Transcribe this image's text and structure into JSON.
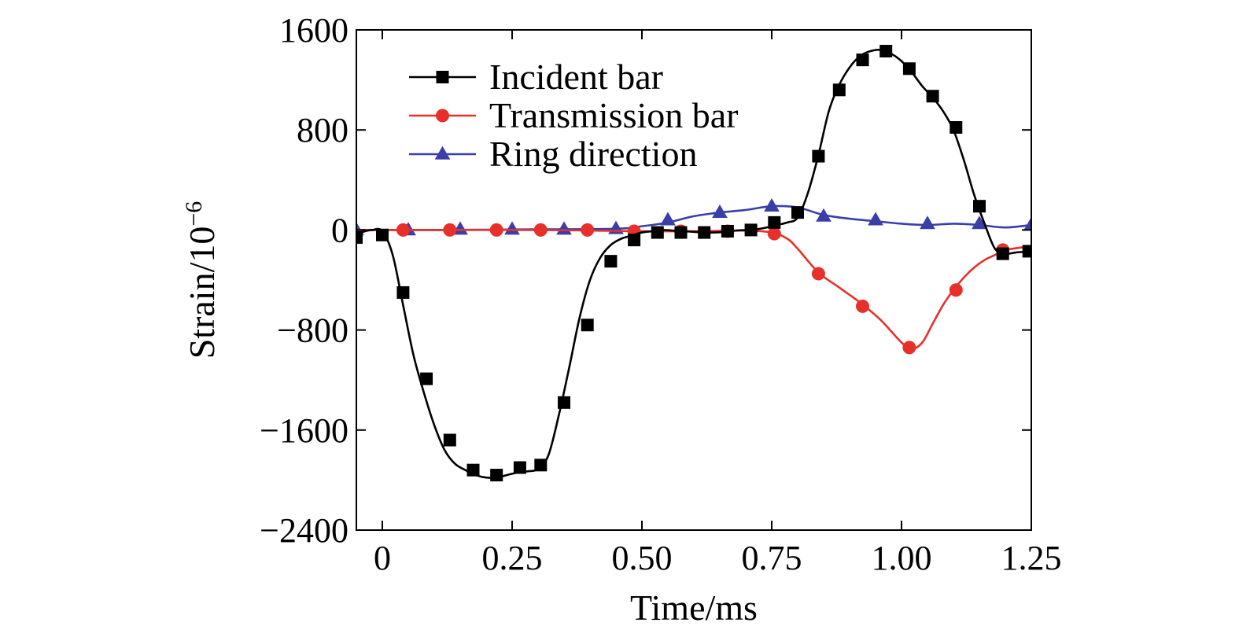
{
  "chart_data": {
    "type": "line",
    "xlabel": "Time/ms",
    "ylabel": "Strain/10",
    "ylabel_exp": "−6",
    "xlim": [
      -0.05,
      1.25
    ],
    "ylim": [
      -2400,
      1600
    ],
    "xticks": [
      0,
      0.25,
      0.5,
      0.75,
      1.0,
      1.25
    ],
    "xtick_labels": [
      "0",
      "0.25",
      "0.50",
      "0.75",
      "1.00",
      "1.25"
    ],
    "yticks": [
      1600,
      800,
      0,
      -800,
      -1600,
      -2400
    ],
    "ytick_labels": [
      "1600",
      "800",
      "0",
      "−800",
      "−1600",
      "−2400"
    ],
    "grid": false,
    "legend_position": "top-left",
    "series": [
      {
        "name": "Incident bar",
        "color": "#000000",
        "marker": "square",
        "x": [
          -0.05,
          -0.04,
          -0.02,
          0,
          0.02,
          0.04,
          0.06,
          0.08,
          0.1,
          0.12,
          0.14,
          0.16,
          0.18,
          0.2,
          0.22,
          0.24,
          0.26,
          0.28,
          0.3,
          0.32,
          0.34,
          0.36,
          0.38,
          0.4,
          0.42,
          0.44,
          0.46,
          0.48,
          0.5,
          0.52,
          0.54,
          0.56,
          0.58,
          0.6,
          0.62,
          0.64,
          0.66,
          0.68,
          0.7,
          0.72,
          0.74,
          0.76,
          0.78,
          0.8,
          0.82,
          0.84,
          0.86,
          0.88,
          0.9,
          0.92,
          0.94,
          0.96,
          0.98,
          1.0,
          1.02,
          1.04,
          1.06,
          1.08,
          1.1,
          1.12,
          1.14,
          1.16,
          1.18,
          1.2,
          1.22,
          1.25
        ],
        "y": [
          -60,
          -20,
          0,
          -10,
          -200,
          -600,
          -1000,
          -1300,
          -1560,
          -1760,
          -1870,
          -1920,
          -1960,
          -1980,
          -1980,
          -1960,
          -1940,
          -1930,
          -1910,
          -1800,
          -1480,
          -1100,
          -700,
          -400,
          -220,
          -120,
          -70,
          -45,
          -20,
          -10,
          0,
          -5,
          -10,
          -15,
          -20,
          -20,
          -15,
          -5,
          0,
          5,
          20,
          40,
          60,
          100,
          300,
          600,
          950,
          1160,
          1300,
          1390,
          1430,
          1440,
          1410,
          1350,
          1260,
          1150,
          1060,
          950,
          800,
          560,
          280,
          50,
          -150,
          -190,
          -180,
          -170
        ],
        "marker_x": [
          -0.05,
          0,
          0.04,
          0.085,
          0.13,
          0.175,
          0.22,
          0.265,
          0.305,
          0.35,
          0.395,
          0.44,
          0.485,
          0.53,
          0.575,
          0.62,
          0.665,
          0.71,
          0.755,
          0.8,
          0.84,
          0.88,
          0.925,
          0.97,
          1.015,
          1.06,
          1.105,
          1.15,
          1.195,
          1.245
        ],
        "marker_y": [
          -60,
          -40,
          -500,
          -1190,
          -1680,
          -1920,
          -1960,
          -1900,
          -1880,
          -1380,
          -760,
          -250,
          -80,
          -20,
          -20,
          -20,
          -10,
          0,
          60,
          140,
          590,
          1120,
          1360,
          1430,
          1290,
          1070,
          820,
          190,
          -190,
          -170
        ]
      },
      {
        "name": "Transmission bar",
        "color": "#e8302a",
        "marker": "circle",
        "x": [
          -0.05,
          0.1,
          0.3,
          0.5,
          0.6,
          0.7,
          0.75,
          0.78,
          0.8,
          0.84,
          0.88,
          0.92,
          0.96,
          1.0,
          1.02,
          1.04,
          1.06,
          1.08,
          1.1,
          1.12,
          1.14,
          1.16,
          1.18,
          1.2,
          1.25
        ],
        "y": [
          0,
          0,
          0,
          -10,
          -10,
          -5,
          -20,
          -70,
          -150,
          -340,
          -460,
          -580,
          -720,
          -900,
          -950,
          -900,
          -750,
          -600,
          -480,
          -380,
          -300,
          -240,
          -200,
          -160,
          -130
        ],
        "marker_x": [
          0.04,
          0.13,
          0.22,
          0.305,
          0.395,
          0.485,
          0.575,
          0.665,
          0.755,
          0.84,
          0.925,
          1.015,
          1.105,
          1.195
        ],
        "marker_y": [
          0,
          0,
          0,
          0,
          0,
          -10,
          -10,
          -10,
          -30,
          -350,
          -610,
          -940,
          -480,
          -160
        ]
      },
      {
        "name": "Ring direction",
        "color": "#3a3fa8",
        "marker": "triangle",
        "x": [
          -0.05,
          0.1,
          0.3,
          0.45,
          0.5,
          0.55,
          0.6,
          0.65,
          0.7,
          0.75,
          0.8,
          0.85,
          0.9,
          0.95,
          1.0,
          1.05,
          1.1,
          1.15,
          1.2,
          1.25
        ],
        "y": [
          0,
          0,
          5,
          10,
          30,
          60,
          110,
          140,
          160,
          190,
          180,
          120,
          90,
          70,
          50,
          40,
          50,
          40,
          20,
          40
        ],
        "marker_x": [
          -0.05,
          0.05,
          0.15,
          0.25,
          0.35,
          0.45,
          0.55,
          0.65,
          0.75,
          0.85,
          0.95,
          1.05,
          1.15,
          1.25
        ],
        "marker_y": [
          0,
          0,
          5,
          5,
          5,
          10,
          80,
          140,
          190,
          110,
          80,
          50,
          50,
          40
        ]
      }
    ]
  }
}
